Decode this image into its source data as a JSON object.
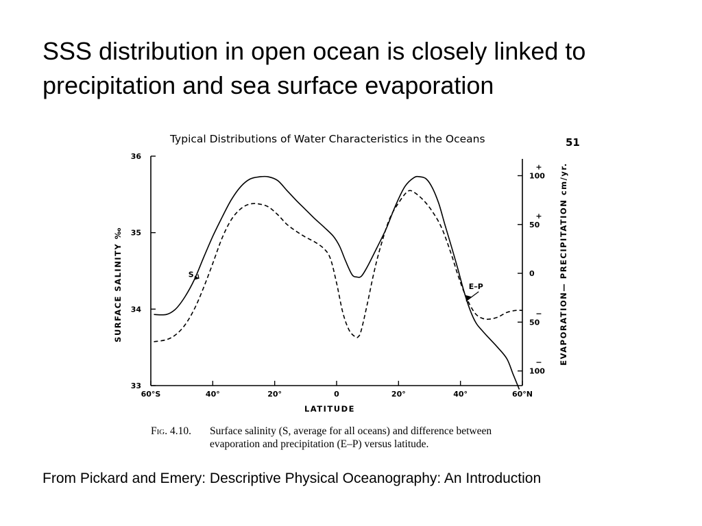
{
  "slide": {
    "title_line1": "SSS distribution in open ocean is closely linked to",
    "title_line2": "precipitation and sea surface evaporation",
    "source": "From Pickard and Emery: Descriptive Physical Oceanography: An Introduction"
  },
  "figure": {
    "header": "Typical Distributions of Water Characteristics in the Oceans",
    "page_number": "51",
    "caption_fig": "Fig. 4.10.",
    "caption_line1": "Surface salinity (S, average for all oceans) and difference between",
    "caption_line2": "evaporation and precipitation (E–P) versus latitude."
  },
  "chart_data": {
    "type": "line",
    "title": "",
    "xlabel": "LATITUDE",
    "ylabel_left": "SURFACE   SALINITY   ‰",
    "ylabel_right": "EVAPORATION— PRECIPITATION   cm/yr.",
    "xlim": [
      -60,
      60
    ],
    "ylim_left": [
      33,
      36
    ],
    "ylim_right": [
      -115,
      120
    ],
    "x_ticks": [
      {
        "value": -60,
        "label": "60°S"
      },
      {
        "value": -40,
        "label": "40°"
      },
      {
        "value": -20,
        "label": "20°"
      },
      {
        "value": 0,
        "label": "0"
      },
      {
        "value": 20,
        "label": "20°"
      },
      {
        "value": 40,
        "label": "40°"
      },
      {
        "value": 60,
        "label": "60°N"
      }
    ],
    "y_ticks_left": [
      {
        "value": 33,
        "label": "33"
      },
      {
        "value": 34,
        "label": "34"
      },
      {
        "value": 35,
        "label": "35"
      },
      {
        "value": 36,
        "label": "36"
      }
    ],
    "y_ticks_right": [
      {
        "value": 100,
        "label": "100",
        "sign": "+"
      },
      {
        "value": 50,
        "label": "50",
        "sign": "+"
      },
      {
        "value": 0,
        "label": "0",
        "sign": ""
      },
      {
        "value": -50,
        "label": "50",
        "sign": "−"
      },
      {
        "value": -100,
        "label": "100",
        "sign": "−"
      }
    ],
    "series": [
      {
        "name": "S",
        "axis": "left",
        "style": "solid",
        "label_at": {
          "x": -47,
          "y": 34.42
        },
        "x": [
          -59,
          -55,
          -52,
          -49,
          -46,
          -43,
          -40,
          -37,
          -34,
          -31,
          -28,
          -25,
          -22,
          -19,
          -16,
          -13,
          -10,
          -7,
          -4,
          -1,
          1,
          3,
          5,
          6.5,
          8,
          10,
          13,
          16,
          19,
          22,
          25,
          27,
          29,
          31,
          33,
          35,
          37,
          39,
          41,
          43,
          45,
          47,
          49,
          52,
          55,
          57,
          59
        ],
        "y": [
          33.93,
          33.93,
          34.0,
          34.16,
          34.38,
          34.67,
          34.95,
          35.2,
          35.43,
          35.6,
          35.7,
          35.73,
          35.73,
          35.68,
          35.55,
          35.42,
          35.3,
          35.18,
          35.07,
          34.95,
          34.82,
          34.62,
          34.45,
          34.42,
          34.43,
          34.56,
          34.8,
          35.05,
          35.35,
          35.6,
          35.72,
          35.73,
          35.7,
          35.58,
          35.38,
          35.1,
          34.83,
          34.55,
          34.25,
          34.0,
          33.82,
          33.72,
          33.63,
          33.5,
          33.35,
          33.15,
          32.95
        ]
      },
      {
        "name": "E–P",
        "axis": "right",
        "style": "dashed",
        "label_at": {
          "x": 45,
          "y": -16
        },
        "x": [
          -59,
          -55,
          -52,
          -49,
          -46,
          -43,
          -40,
          -37,
          -34,
          -31,
          -28,
          -25,
          -22,
          -19,
          -16,
          -13,
          -10,
          -7,
          -4,
          -2,
          0,
          2,
          4,
          6,
          7,
          8,
          10,
          12,
          14,
          17,
          20,
          23,
          25,
          28,
          31,
          34,
          37,
          39,
          41,
          43,
          45,
          47,
          49,
          52,
          55,
          58,
          60
        ],
        "y": [
          -70,
          -68,
          -63,
          -53,
          -37,
          -15,
          10,
          36,
          55,
          66,
          71,
          71,
          68,
          60,
          50,
          43,
          37,
          32,
          25,
          15,
          -10,
          -40,
          -58,
          -65,
          -65,
          -58,
          -30,
          0,
          25,
          55,
          72,
          84,
          83,
          75,
          63,
          46,
          20,
          0,
          -18,
          -32,
          -42,
          -46,
          -47,
          -45,
          -40,
          -38,
          -38
        ]
      }
    ]
  }
}
